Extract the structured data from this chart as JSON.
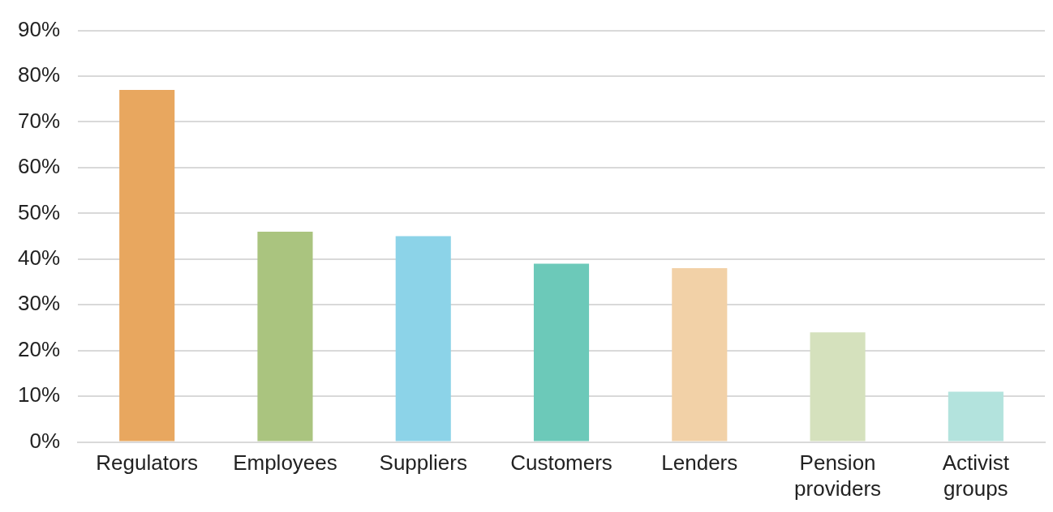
{
  "chart_data": {
    "type": "bar",
    "categories": [
      "Regulators",
      "Employees",
      "Suppliers",
      "Customers",
      "Lenders",
      "Pension providers",
      "Activist groups"
    ],
    "values": [
      77,
      46,
      45,
      39,
      38,
      24,
      11
    ],
    "colors": [
      "#e8a75f",
      "#aac47f",
      "#8cd3e8",
      "#6cc9b9",
      "#f2d1a7",
      "#d5e1bd",
      "#b3e3dd"
    ],
    "ylim": [
      0,
      90
    ],
    "yticks": [
      {
        "value": 0,
        "label": "0%"
      },
      {
        "value": 10,
        "label": "10%"
      },
      {
        "value": 20,
        "label": "20%"
      },
      {
        "value": 30,
        "label": "30%"
      },
      {
        "value": 40,
        "label": "40%"
      },
      {
        "value": 50,
        "label": "50%"
      },
      {
        "value": 60,
        "label": "60%"
      },
      {
        "value": 70,
        "label": "70%"
      },
      {
        "value": 80,
        "label": "80%"
      },
      {
        "value": 90,
        "label": "90%"
      }
    ],
    "grid": "y",
    "legend": false
  }
}
